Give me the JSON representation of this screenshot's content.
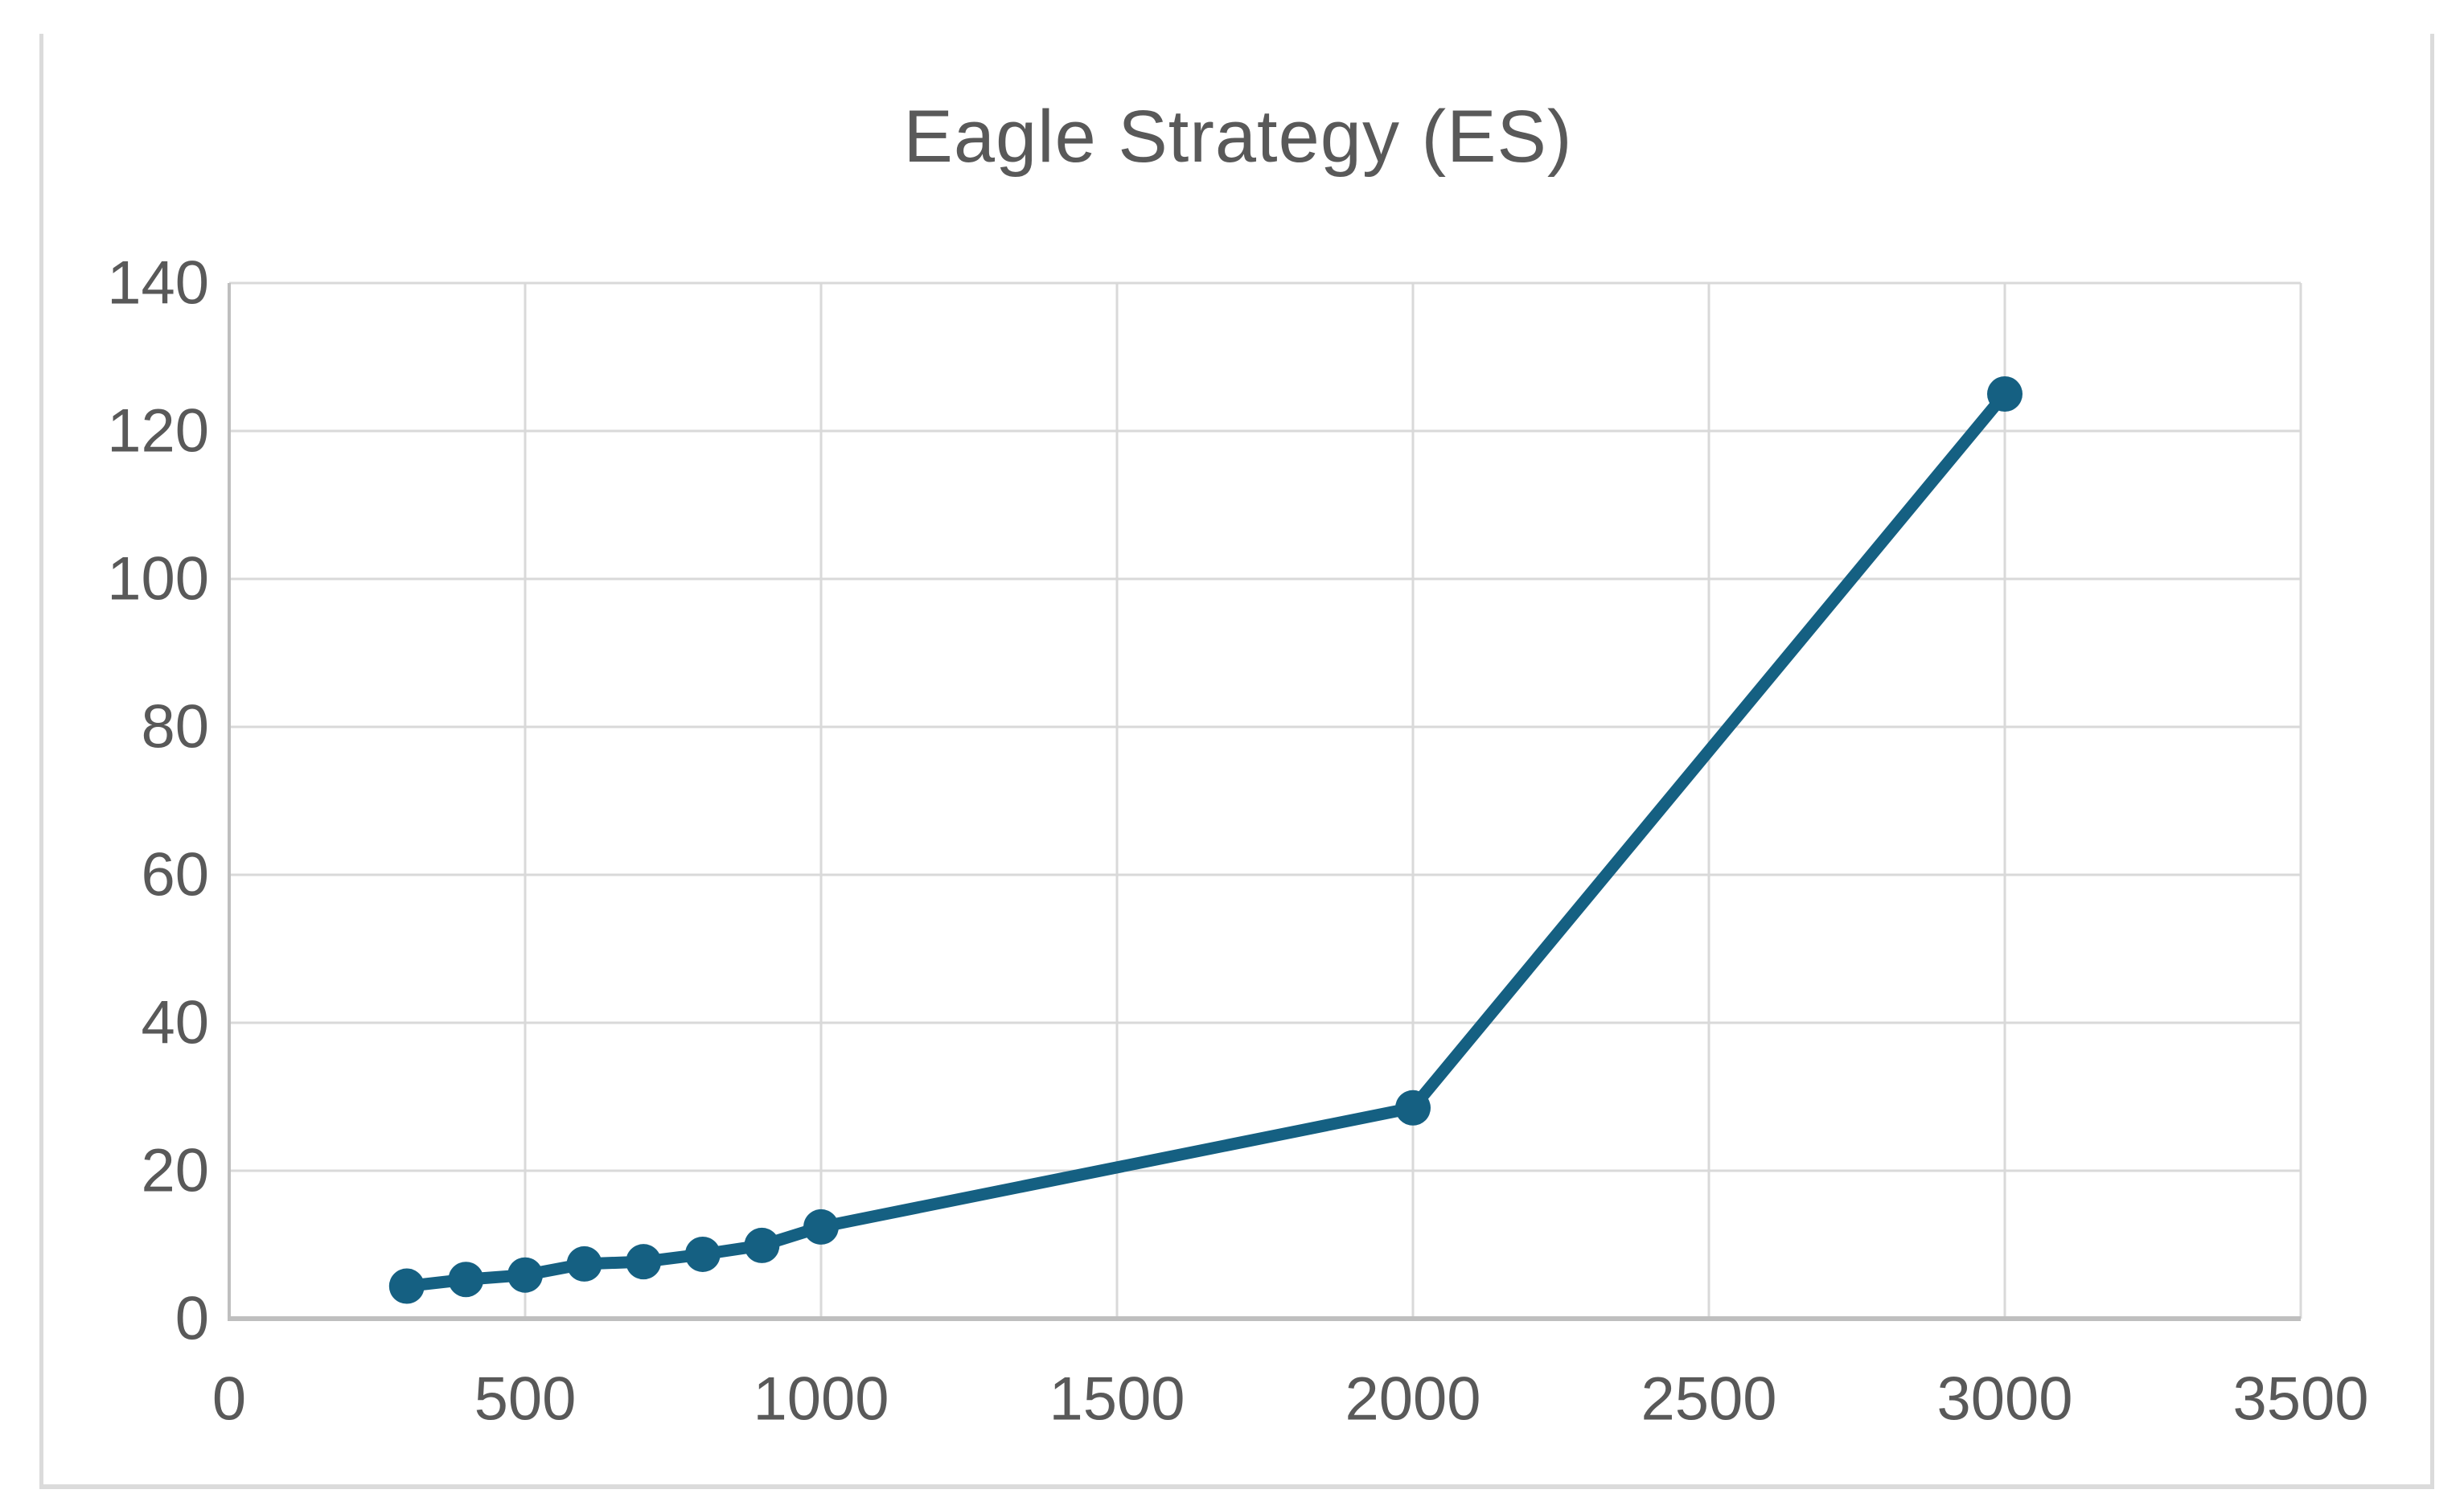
{
  "chart_data": {
    "type": "line",
    "title": "Eagle Strategy (ES)",
    "xlabel": "",
    "ylabel": "",
    "xlim": [
      0,
      3500
    ],
    "ylim": [
      0,
      140
    ],
    "x_ticks": [
      0,
      500,
      1000,
      1500,
      2000,
      2500,
      3000,
      3500
    ],
    "y_ticks": [
      0,
      20,
      40,
      60,
      80,
      100,
      120,
      140
    ],
    "grid": true,
    "legend_position": "none",
    "marker": "circle",
    "series": [
      {
        "name": "Eagle Strategy (ES)",
        "x": [
          300,
          400,
          500,
          600,
          700,
          800,
          900,
          1000,
          2000,
          3000
        ],
        "y": [
          4.4,
          5.3,
          5.9,
          7.4,
          7.7,
          8.7,
          9.9,
          12.4,
          28.5,
          125
        ]
      }
    ]
  },
  "styles": {
    "series_color": "#156082",
    "gridline_color": "#d9d9d9",
    "axis_line_color": "#bfbfbf",
    "tick_label_color": "#595959",
    "title_color": "#595959",
    "frame_border_color": "#dbdbdb",
    "background_color": "#ffffff"
  }
}
